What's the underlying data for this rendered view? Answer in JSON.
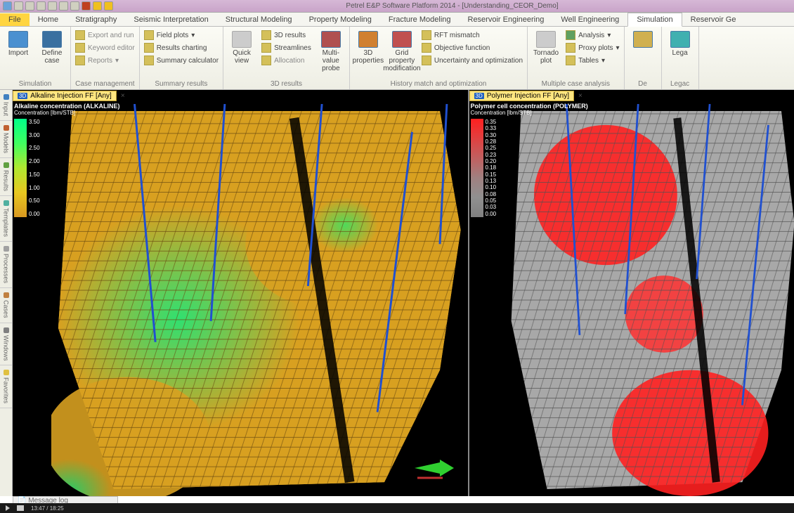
{
  "title": "Petrel E&P Software Platform 2014 - [Understanding_CEOR_Demo]",
  "qat_icons": [
    "save",
    "undo",
    "redo",
    "find",
    "box1",
    "box2",
    "box3",
    "box4",
    "play",
    "help"
  ],
  "tabs": {
    "file": "File",
    "items": [
      "Home",
      "Stratigraphy",
      "Seismic Interpretation",
      "Structural Modeling",
      "Property Modeling",
      "Fracture Modeling",
      "Reservoir Engineering",
      "Well Engineering",
      "Simulation",
      "Reservoir Ge"
    ],
    "active": "Simulation"
  },
  "ribbon": {
    "g1": {
      "label": "Simulation",
      "btns": [
        "Import",
        "Define case"
      ]
    },
    "g2": {
      "label": "Case management",
      "items": [
        "Export and run",
        "Keyword editor",
        "Reports"
      ]
    },
    "g3": {
      "label": "Summary results",
      "items": [
        "Field plots",
        "Results charting",
        "Summary calculator"
      ]
    },
    "g4": {
      "label": "3D results",
      "big": [
        "Quick view"
      ],
      "items": [
        "3D results",
        "Streamlines",
        "Allocation"
      ],
      "big2": "Multi-value probe"
    },
    "g5": {
      "label": "History match and optimization",
      "big": [
        "3D properties",
        "Grid property modification"
      ],
      "items": [
        "RFT mismatch",
        "Objective function",
        "Uncertainty and optimization"
      ]
    },
    "g6": {
      "label": "Multiple case analysis",
      "big": "Tornado plot",
      "items": [
        "Analysis",
        "Proxy plots",
        "Tables"
      ]
    },
    "g7": {
      "label": "De",
      "big": ""
    },
    "g8": {
      "label": "Legac",
      "big": "Lega"
    }
  },
  "sidetabs": [
    "Input",
    "Models",
    "Results",
    "Templates",
    "Processes",
    "Cases",
    "Windows",
    "Favorites"
  ],
  "panes": {
    "left": {
      "tab": "Alkaline Injection FF  [Any]",
      "legend_title": "Alkaline concentration (ALKALINE)",
      "legend_sub": "Concentration [lbm/STB]",
      "ticks": [
        "3.50",
        "3.00",
        "2.50",
        "2.00",
        "1.50",
        "1.00",
        "0.50",
        "0.00"
      ],
      "surface_base": "#d8a020",
      "surface_hi": "#30e070",
      "mesh": "#6a4a10"
    },
    "right": {
      "tab": "Polymer Injection FF  [Any]",
      "legend_title": "Polymer cell concentration (POLYMER)",
      "legend_sub": "Concentration [lbm/STB]",
      "ticks": [
        "0.35",
        "0.33",
        "0.30",
        "0.28",
        "0.25",
        "0.23",
        "0.20",
        "0.18",
        "0.15",
        "0.13",
        "0.10",
        "0.08",
        "0.05",
        "0.03",
        "0.00"
      ],
      "surface_base": "#a0a0a0",
      "surface_hi": "#ff2020",
      "mesh": "#505050"
    }
  },
  "msglog": "Message log",
  "video": {
    "cur": "13:47",
    "dur": "18:25"
  }
}
